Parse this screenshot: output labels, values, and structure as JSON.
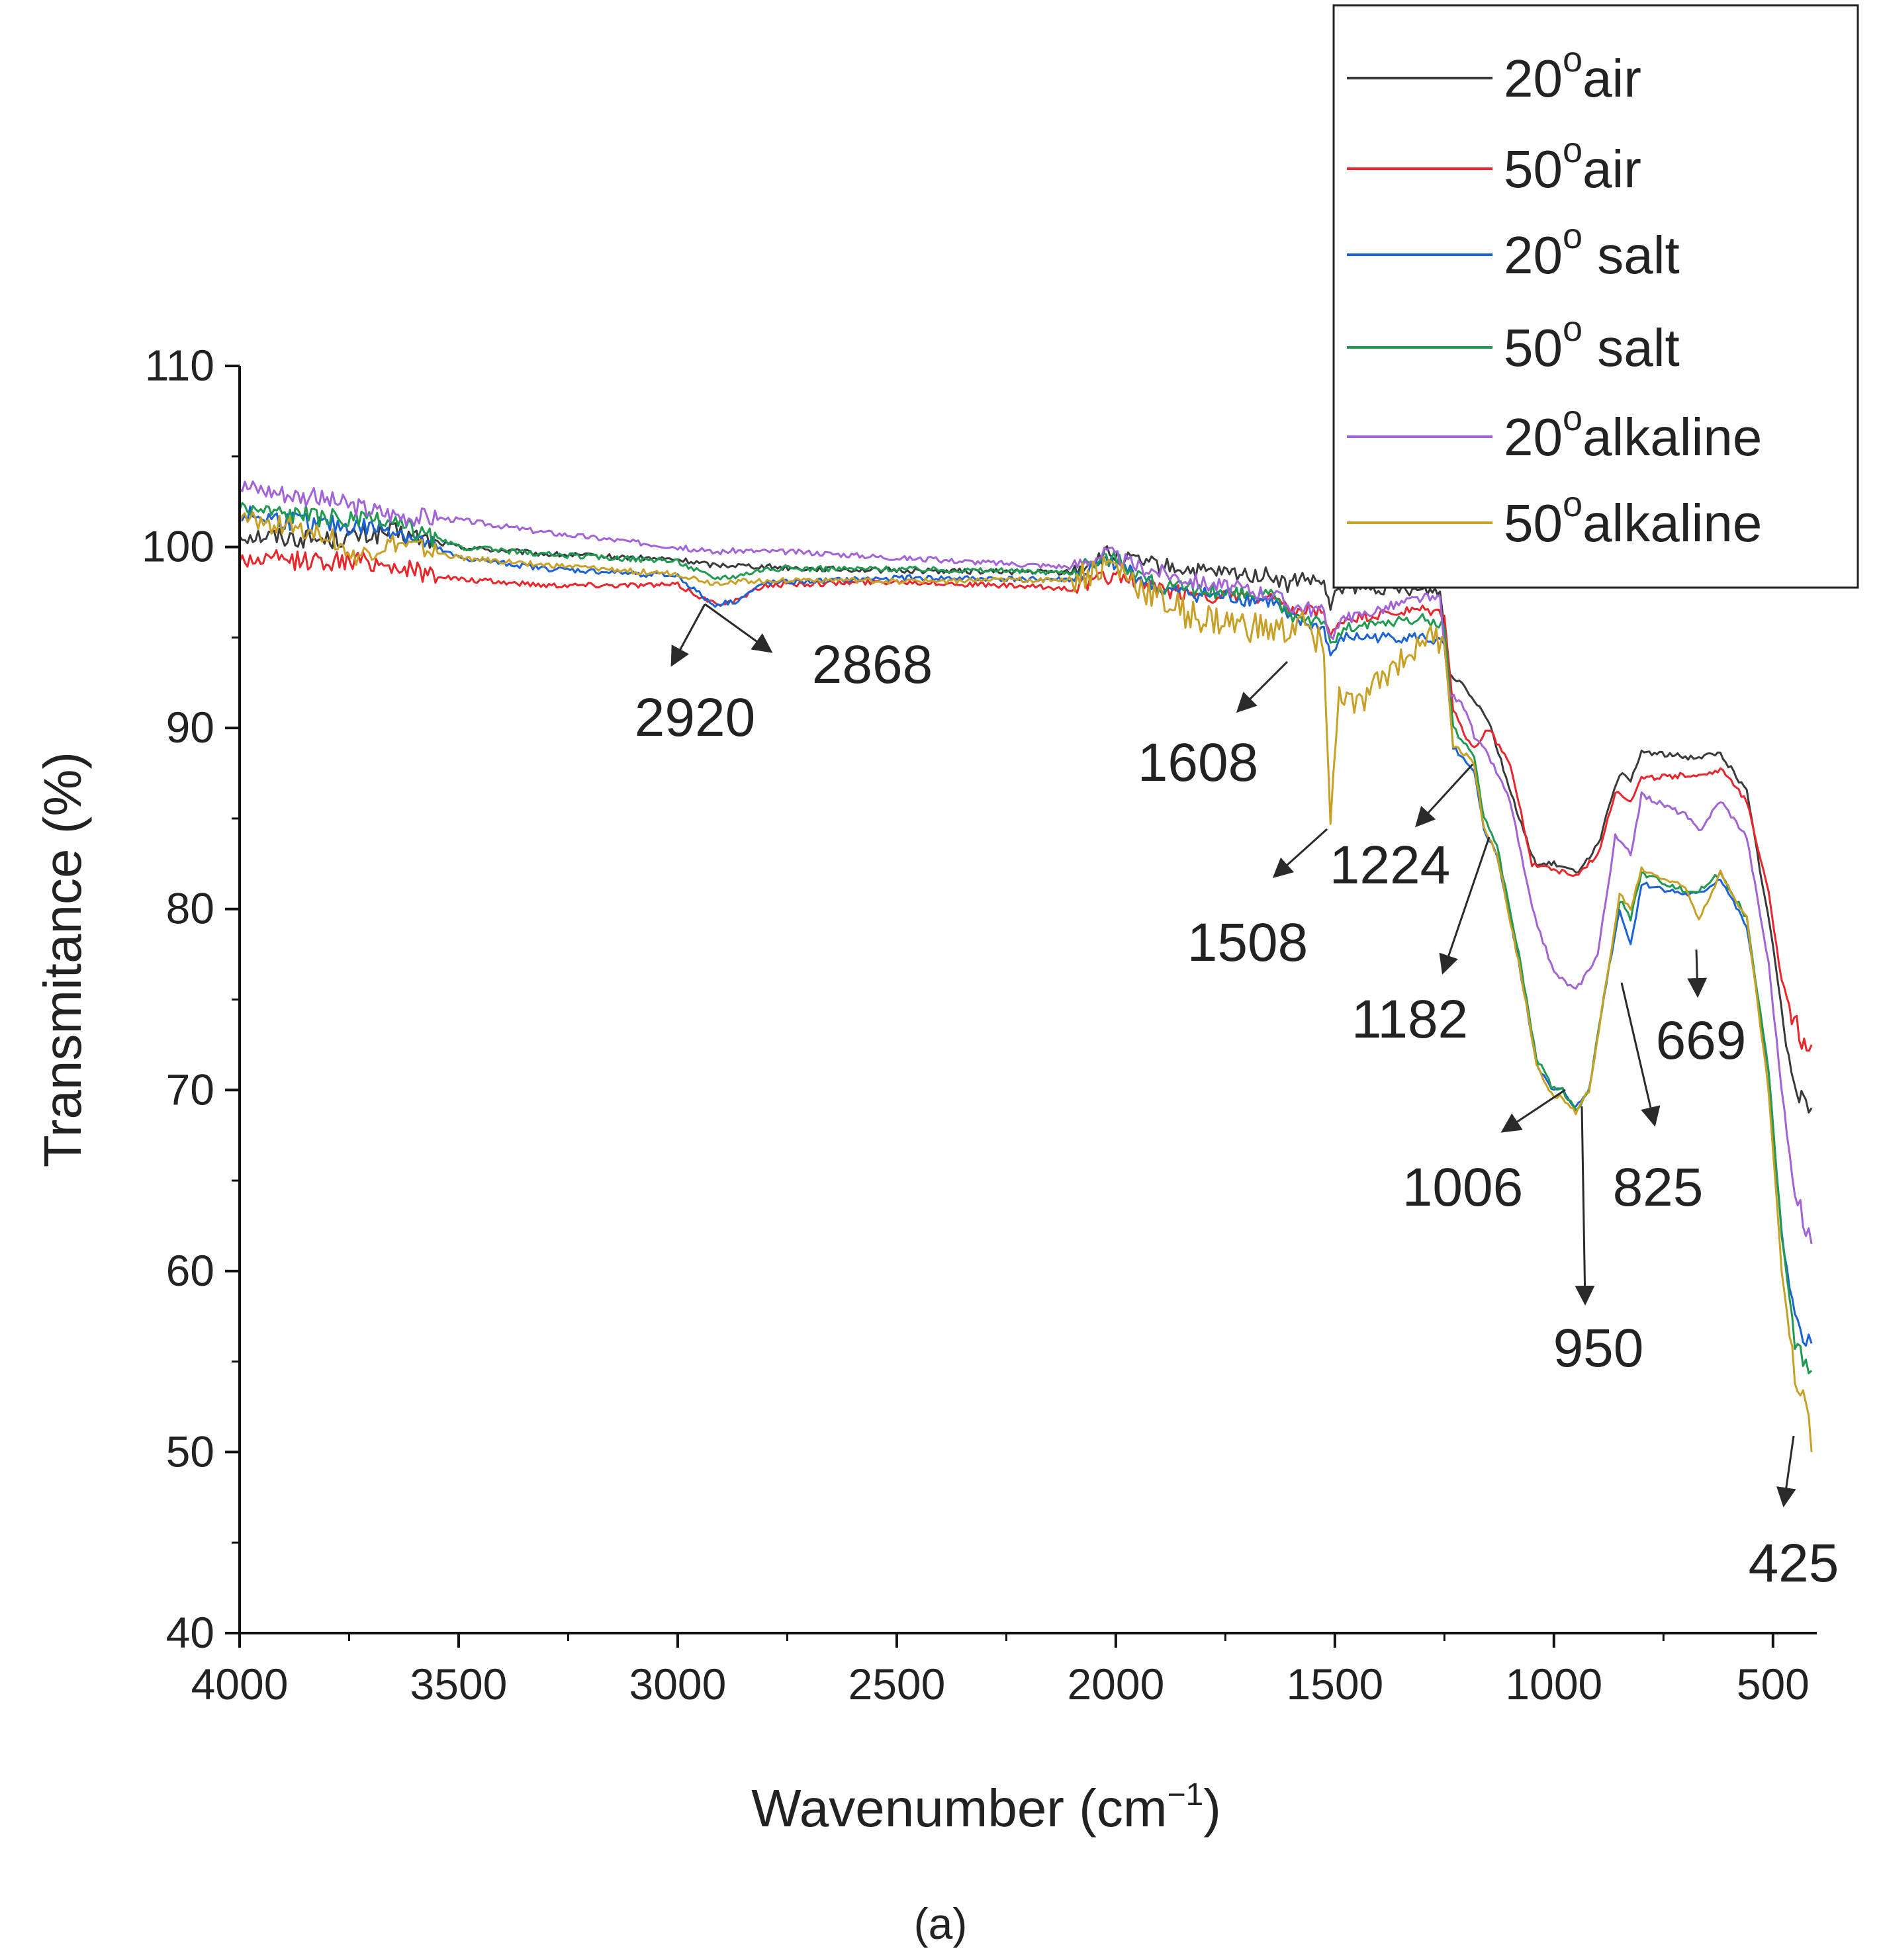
{
  "chart_data": {
    "type": "line",
    "xlabel": "Wavenumber (cm",
    "xlabel_sup": "−1",
    "xlabel_end": ")",
    "ylabel": "Transmitance (%)",
    "xlim": [
      4000,
      400
    ],
    "ylim": [
      40,
      110
    ],
    "x_ticks": [
      4000,
      3500,
      3000,
      2500,
      2000,
      1500,
      1000,
      500
    ],
    "y_ticks": [
      40,
      50,
      60,
      70,
      80,
      90,
      100,
      110
    ],
    "legend_position": "top-right",
    "caption": "(a)",
    "series": [
      {
        "name_main": "20",
        "name_sup": "o",
        "name_rest": "air",
        "color": "#3a3a3a",
        "points": [
          [
            4000,
            100.7
          ],
          [
            3800,
            100.4
          ],
          [
            3650,
            100.8
          ],
          [
            3500,
            100
          ],
          [
            3300,
            99.6
          ],
          [
            3000,
            99.3
          ],
          [
            2920,
            99
          ],
          [
            2868,
            99
          ],
          [
            2700,
            98.8
          ],
          [
            2500,
            98.7
          ],
          [
            2100,
            98.6
          ],
          [
            2020,
            99.6
          ],
          [
            1960,
            99.2
          ],
          [
            1800,
            98.6
          ],
          [
            1640,
            98.4
          ],
          [
            1608,
            97.8
          ],
          [
            1580,
            98.3
          ],
          [
            1525,
            98
          ],
          [
            1510,
            96.5
          ],
          [
            1495,
            97.7
          ],
          [
            1300,
            97.6
          ],
          [
            1260,
            97.6
          ],
          [
            1240,
            93
          ],
          [
            1210,
            92.5
          ],
          [
            1182,
            91.6
          ],
          [
            1150,
            90.5
          ],
          [
            1080,
            85
          ],
          [
            1040,
            82.4
          ],
          [
            1000,
            82.5
          ],
          [
            950,
            82
          ],
          [
            900,
            83.5
          ],
          [
            850,
            87.5
          ],
          [
            825,
            87
          ],
          [
            800,
            88.7
          ],
          [
            700,
            88.4
          ],
          [
            669,
            88.4
          ],
          [
            620,
            88.6
          ],
          [
            560,
            86.5
          ],
          [
            500,
            78
          ],
          [
            470,
            72.5
          ],
          [
            440,
            70
          ],
          [
            425,
            69.5
          ],
          [
            412,
            69
          ]
        ]
      },
      {
        "name_main": "50",
        "name_sup": "o",
        "name_rest": "air",
        "color": "#e8262b",
        "points": [
          [
            4000,
            99.3
          ],
          [
            3700,
            99.2
          ],
          [
            3600,
            98.7
          ],
          [
            3500,
            98.2
          ],
          [
            3300,
            97.9
          ],
          [
            3000,
            97.9
          ],
          [
            2920,
            96.9
          ],
          [
            2868,
            97
          ],
          [
            2800,
            97.9
          ],
          [
            2500,
            98.1
          ],
          [
            2100,
            97.7
          ],
          [
            2000,
            98.5
          ],
          [
            1900,
            97.6
          ],
          [
            1640,
            97
          ],
          [
            1608,
            96.4
          ],
          [
            1525,
            96.4
          ],
          [
            1510,
            95
          ],
          [
            1480,
            96
          ],
          [
            1300,
            96.5
          ],
          [
            1250,
            96.3
          ],
          [
            1230,
            91
          ],
          [
            1200,
            89.5
          ],
          [
            1182,
            88.8
          ],
          [
            1150,
            90
          ],
          [
            1100,
            88
          ],
          [
            1050,
            82.5
          ],
          [
            1000,
            82.2
          ],
          [
            950,
            81.8
          ],
          [
            900,
            83
          ],
          [
            860,
            86.5
          ],
          [
            825,
            86
          ],
          [
            800,
            87.2
          ],
          [
            700,
            87.4
          ],
          [
            669,
            87.4
          ],
          [
            620,
            87.7
          ],
          [
            560,
            86
          ],
          [
            510,
            81
          ],
          [
            480,
            76
          ],
          [
            440,
            73
          ],
          [
            412,
            72.5
          ]
        ]
      },
      {
        "name_main": "20",
        "name_sup": "o",
        "name_rest": " salt",
        "color": "#1a62d6",
        "points": [
          [
            4000,
            101.8
          ],
          [
            3800,
            101.2
          ],
          [
            3650,
            101
          ],
          [
            3500,
            99.4
          ],
          [
            3300,
            98.8
          ],
          [
            3000,
            98.4
          ],
          [
            2920,
            96.8
          ],
          [
            2868,
            97
          ],
          [
            2800,
            98
          ],
          [
            2500,
            98.3
          ],
          [
            2100,
            98.2
          ],
          [
            2010,
            99.3
          ],
          [
            1900,
            97.6
          ],
          [
            1640,
            97
          ],
          [
            1608,
            96
          ],
          [
            1525,
            95.5
          ],
          [
            1510,
            94
          ],
          [
            1480,
            95
          ],
          [
            1300,
            95
          ],
          [
            1250,
            94.6
          ],
          [
            1230,
            89
          ],
          [
            1200,
            88
          ],
          [
            1182,
            87.5
          ],
          [
            1160,
            84.4
          ],
          [
            1130,
            83
          ],
          [
            1080,
            77
          ],
          [
            1040,
            71.5
          ],
          [
            1006,
            70
          ],
          [
            980,
            70
          ],
          [
            950,
            69
          ],
          [
            920,
            70
          ],
          [
            880,
            76
          ],
          [
            850,
            80
          ],
          [
            825,
            78
          ],
          [
            800,
            81.4
          ],
          [
            700,
            80.8
          ],
          [
            669,
            80.8
          ],
          [
            620,
            81.7
          ],
          [
            560,
            79
          ],
          [
            510,
            71
          ],
          [
            480,
            62
          ],
          [
            450,
            57
          ],
          [
            425,
            56.5
          ],
          [
            412,
            56
          ]
        ]
      },
      {
        "name_main": "50",
        "name_sup": "o",
        "name_rest": " salt",
        "color": "#1f9a50",
        "points": [
          [
            4000,
            102.2
          ],
          [
            3800,
            101.6
          ],
          [
            3650,
            101.3
          ],
          [
            3500,
            100
          ],
          [
            3300,
            99.6
          ],
          [
            3000,
            99.2
          ],
          [
            2920,
            98.3
          ],
          [
            2868,
            98.4
          ],
          [
            2800,
            98.8
          ],
          [
            2500,
            98.8
          ],
          [
            2100,
            98.6
          ],
          [
            2010,
            99.5
          ],
          [
            1900,
            97.8
          ],
          [
            1640,
            97.2
          ],
          [
            1608,
            96.3
          ],
          [
            1525,
            96
          ],
          [
            1510,
            94.5
          ],
          [
            1480,
            95.5
          ],
          [
            1300,
            96
          ],
          [
            1250,
            95.6
          ],
          [
            1230,
            90
          ],
          [
            1200,
            89
          ],
          [
            1182,
            88.5
          ],
          [
            1160,
            85
          ],
          [
            1130,
            83.5
          ],
          [
            1080,
            77.5
          ],
          [
            1040,
            71.8
          ],
          [
            1006,
            70.2
          ],
          [
            980,
            70
          ],
          [
            950,
            68.8
          ],
          [
            920,
            70
          ],
          [
            880,
            76
          ],
          [
            850,
            80.5
          ],
          [
            825,
            79.5
          ],
          [
            800,
            82
          ],
          [
            700,
            81
          ],
          [
            669,
            81
          ],
          [
            620,
            82
          ],
          [
            560,
            79.5
          ],
          [
            510,
            71
          ],
          [
            480,
            62
          ],
          [
            450,
            56
          ],
          [
            425,
            55
          ],
          [
            412,
            54.5
          ]
        ]
      },
      {
        "name_main": "20",
        "name_sup": "o",
        "name_rest": "alkaline",
        "color": "#a263d8",
        "points": [
          [
            4000,
            103.4
          ],
          [
            3800,
            102.6
          ],
          [
            3650,
            101.8
          ],
          [
            3500,
            101.5
          ],
          [
            3300,
            100.8
          ],
          [
            3000,
            100
          ],
          [
            2920,
            99.7
          ],
          [
            2868,
            99.8
          ],
          [
            2700,
            99.7
          ],
          [
            2500,
            99.4
          ],
          [
            2100,
            98.9
          ],
          [
            2020,
            99.7
          ],
          [
            1960,
            99
          ],
          [
            1800,
            98
          ],
          [
            1640,
            97.4
          ],
          [
            1608,
            96.8
          ],
          [
            1525,
            96.5
          ],
          [
            1510,
            95
          ],
          [
            1480,
            96
          ],
          [
            1300,
            97.2
          ],
          [
            1260,
            97
          ],
          [
            1240,
            92
          ],
          [
            1200,
            91
          ],
          [
            1182,
            89.5
          ],
          [
            1150,
            88.5
          ],
          [
            1100,
            86
          ],
          [
            1050,
            80
          ],
          [
            1000,
            76.5
          ],
          [
            950,
            75.5
          ],
          [
            900,
            77.5
          ],
          [
            860,
            84
          ],
          [
            825,
            83
          ],
          [
            800,
            86.3
          ],
          [
            700,
            85.2
          ],
          [
            669,
            84.3
          ],
          [
            620,
            86
          ],
          [
            560,
            84
          ],
          [
            510,
            77
          ],
          [
            480,
            70
          ],
          [
            450,
            64
          ],
          [
            425,
            62.5
          ],
          [
            412,
            61.5
          ]
        ]
      },
      {
        "name_main": "50",
        "name_sup": "o",
        "name_rest": "alkaline",
        "color": "#c9a026",
        "points": [
          [
            4000,
            101.5
          ],
          [
            3800,
            100.8
          ],
          [
            3740,
            99.4
          ],
          [
            3650,
            100.2
          ],
          [
            3500,
            99.4
          ],
          [
            3300,
            99
          ],
          [
            3000,
            98.5
          ],
          [
            2920,
            98
          ],
          [
            2868,
            98.1
          ],
          [
            2700,
            98.2
          ],
          [
            2500,
            98.1
          ],
          [
            2100,
            98.2
          ],
          [
            2010,
            99
          ],
          [
            1900,
            97
          ],
          [
            1800,
            96
          ],
          [
            1640,
            95.3
          ],
          [
            1608,
            95.3
          ],
          [
            1580,
            95.8
          ],
          [
            1525,
            94.5
          ],
          [
            1510,
            84.5
          ],
          [
            1490,
            92
          ],
          [
            1450,
            91
          ],
          [
            1380,
            93
          ],
          [
            1300,
            95
          ],
          [
            1250,
            94.8
          ],
          [
            1230,
            89
          ],
          [
            1200,
            88.5
          ],
          [
            1182,
            88
          ],
          [
            1160,
            84.5
          ],
          [
            1130,
            83
          ],
          [
            1080,
            77
          ],
          [
            1040,
            71.5
          ],
          [
            1006,
            69.8
          ],
          [
            980,
            69.6
          ],
          [
            950,
            68.7
          ],
          [
            920,
            70
          ],
          [
            880,
            76
          ],
          [
            850,
            80.8
          ],
          [
            825,
            80
          ],
          [
            800,
            82.2
          ],
          [
            700,
            81.2
          ],
          [
            669,
            79.5
          ],
          [
            620,
            82
          ],
          [
            560,
            79.5
          ],
          [
            510,
            70
          ],
          [
            480,
            60
          ],
          [
            450,
            54
          ],
          [
            425,
            53
          ],
          [
            412,
            50
          ]
        ]
      }
    ],
    "peak_annotations": [
      {
        "label": "2920"
      },
      {
        "label": "2868"
      },
      {
        "label": "1608"
      },
      {
        "label": "1508"
      },
      {
        "label": "1224"
      },
      {
        "label": "1182"
      },
      {
        "label": "1006"
      },
      {
        "label": "950"
      },
      {
        "label": "825"
      },
      {
        "label": "669"
      },
      {
        "label": "425"
      }
    ]
  }
}
